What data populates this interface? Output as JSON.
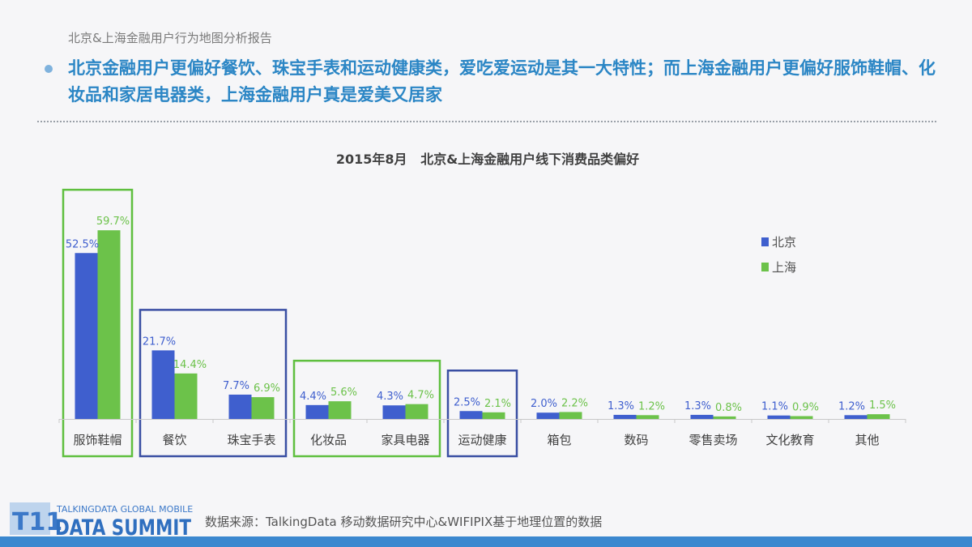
{
  "header": {
    "top_note": "北京&上海金融用户行为地图分析报告",
    "headline": "北京金融用户更偏好餐饮、珠宝手表和运动健康类，爱吃爱运动是其一大特性；而上海金融用户更偏好服饰鞋帽、化妆品和家居电器类，上海金融用户真是爱美又居家"
  },
  "footer": {
    "logo_line1": "TALKINGDATA GLOBAL MOBILE",
    "logo_line2": "DATA SUMMIT",
    "logo_mark": "T11",
    "source": "数据来源：TalkingData 移动数据研究中心&WIFIPIX基于地理位置的数据"
  },
  "colors": {
    "beijing": "#3f5fce",
    "shanghai": "#6cc24a",
    "highlight_green": "#5fbf3f",
    "highlight_blue": "#3a4fa3",
    "headline": "#2b86c5"
  },
  "chart_data": {
    "type": "bar",
    "title": "2015年8月   北京&上海金融用户线下消费品类偏好",
    "categories": [
      "服饰鞋帽",
      "餐饮",
      "珠宝手表",
      "化妆品",
      "家具电器",
      "运动健康",
      "箱包",
      "数码",
      "零售卖场",
      "文化教育",
      "其他"
    ],
    "series": [
      {
        "name": "北京",
        "values": [
          52.5,
          21.7,
          7.7,
          4.4,
          4.3,
          2.5,
          2.0,
          1.3,
          1.3,
          1.1,
          1.2
        ],
        "labels": [
          "52.5%",
          "21.7%",
          "7.7%",
          "4.4%",
          "4.3%",
          "2.5%",
          "2.0%",
          "1.3%",
          "1.3%",
          "1.1%",
          "1.2%"
        ]
      },
      {
        "name": "上海",
        "values": [
          59.7,
          14.4,
          6.9,
          5.6,
          4.7,
          2.1,
          2.2,
          1.2,
          0.8,
          0.9,
          1.5
        ],
        "labels": [
          "59.7%",
          "14.4%",
          "6.9%",
          "5.6%",
          "4.7%",
          "2.1%",
          "2.2%",
          "1.2%",
          "0.8%",
          "0.9%",
          "1.5%"
        ]
      }
    ],
    "legend_position": "right",
    "highlight_groups": [
      {
        "color": "green",
        "categories": [
          "服饰鞋帽"
        ]
      },
      {
        "color": "blue",
        "categories": [
          "餐饮",
          "珠宝手表"
        ]
      },
      {
        "color": "green",
        "categories": [
          "化妆品",
          "家具电器"
        ]
      },
      {
        "color": "blue",
        "categories": [
          "运动健康"
        ]
      }
    ]
  }
}
